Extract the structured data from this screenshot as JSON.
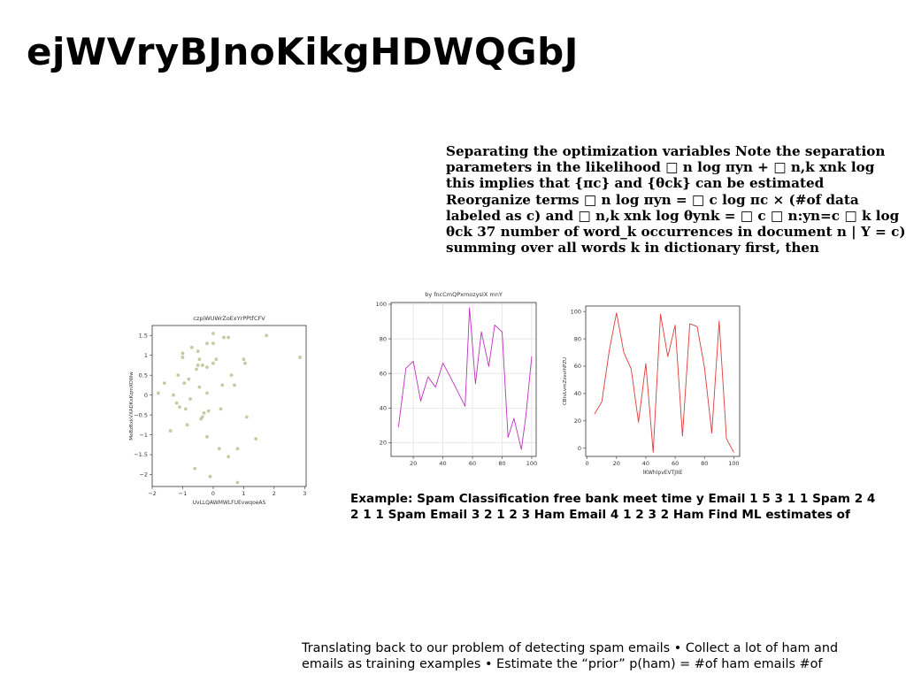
{
  "slide": {
    "title": "ejWVryBJnoKikgHDWQGbJ",
    "paragraph_1": "Separating the optimization variables Note the separation parameters in the likelihood □ n log πyn + □ n,k xnk log this implies that {πc} and {θck} can be estimated Reorganize terms □ n log πyn = □ c log πc × (#of data labeled as c) and □ n,k xnk log θynk = □ c □ n:yn=c □ k log θck 37 number of word_k occurrences in document n | Y = c) summing over all words k in dictionary first, then",
    "paragraph_2": "Example: Spam Classification free bank meet time y Email 1 5 3 1 1 Spam 2 4 2 1 1 Spam Email 3 2 1 2 3 Ham Email 4 1 2 3 2 Ham Find ML estimates of",
    "paragraph_3": "Translating back to our problem of detecting spam emails • Collect a lot of ham and emails as training examples • Estimate the “prior” p(ham) = #of ham emails #of"
  },
  "chart_data": [
    {
      "type": "scatter",
      "title": "czpiWUWrZoExYrPPtfCFV",
      "xlabel": "UvLLQAWMWLFUEvwqoeAS",
      "ylabel": "MeBzBxkVXADKxKqmXOWw",
      "xlim": [
        -2,
        3.05
      ],
      "ylim": [
        -2.3,
        1.75
      ],
      "xticks": [
        -2,
        -1,
        0,
        1,
        2,
        3
      ],
      "yticks": [
        -2.0,
        -1.5,
        -1.0,
        -0.5,
        0.0,
        0.5,
        1.0,
        1.5
      ],
      "color": "#c8c9a3",
      "points": [
        [
          -1.8,
          0.05
        ],
        [
          -1.6,
          0.3
        ],
        [
          -1.4,
          -0.9
        ],
        [
          -1.3,
          0.0
        ],
        [
          -1.2,
          -0.2
        ],
        [
          -1.15,
          0.5
        ],
        [
          -1.1,
          -0.3
        ],
        [
          -1.0,
          1.05
        ],
        [
          -1.0,
          0.95
        ],
        [
          -0.95,
          0.3
        ],
        [
          -0.9,
          -0.35
        ],
        [
          -0.85,
          -0.75
        ],
        [
          -0.8,
          0.4
        ],
        [
          -0.75,
          -0.1
        ],
        [
          -0.7,
          1.2
        ],
        [
          -0.6,
          -1.85
        ],
        [
          -0.55,
          0.65
        ],
        [
          -0.5,
          0.75
        ],
        [
          -0.5,
          1.1
        ],
        [
          -0.45,
          0.2
        ],
        [
          -0.45,
          0.9
        ],
        [
          -0.4,
          -0.6
        ],
        [
          -0.35,
          -0.55
        ],
        [
          -0.35,
          0.75
        ],
        [
          -0.3,
          -0.45
        ],
        [
          -0.2,
          0.7
        ],
        [
          -0.2,
          -1.05
        ],
        [
          -0.2,
          0.05
        ],
        [
          -0.2,
          1.3
        ],
        [
          -0.15,
          -0.4
        ],
        [
          -0.1,
          -2.05
        ],
        [
          0.0,
          0.8
        ],
        [
          0.0,
          1.55
        ],
        [
          0.0,
          1.3
        ],
        [
          0.1,
          0.9
        ],
        [
          0.2,
          -1.35
        ],
        [
          0.25,
          -0.35
        ],
        [
          0.3,
          0.25
        ],
        [
          0.35,
          1.45
        ],
        [
          0.5,
          1.45
        ],
        [
          0.5,
          -1.55
        ],
        [
          0.6,
          0.5
        ],
        [
          0.7,
          0.25
        ],
        [
          0.8,
          -1.35
        ],
        [
          0.8,
          -2.2
        ],
        [
          1.0,
          0.9
        ],
        [
          1.05,
          0.8
        ],
        [
          1.1,
          -0.55
        ],
        [
          1.4,
          -1.1
        ],
        [
          1.75,
          1.5
        ],
        [
          2.85,
          0.95
        ]
      ]
    },
    {
      "type": "line",
      "title": "by fncCmQPxmozysIX mnY",
      "xlabel": "",
      "ylabel": "",
      "xlim": [
        5,
        103
      ],
      "ylim": [
        12,
        101
      ],
      "xticks": [
        20,
        40,
        60,
        80,
        100
      ],
      "yticks": [
        20,
        40,
        60,
        80,
        100
      ],
      "grid": true,
      "color": "#bf30bf",
      "x": [
        10,
        15,
        20,
        25,
        30,
        35,
        40,
        45,
        55,
        58,
        62,
        66,
        71,
        75,
        80,
        84,
        88,
        93,
        96,
        100
      ],
      "y": [
        29,
        63,
        67,
        44,
        58,
        52,
        66,
        58,
        41,
        98,
        54,
        84,
        64,
        88,
        84,
        23,
        34,
        16,
        35,
        70
      ]
    },
    {
      "type": "line",
      "title": "",
      "xlabel": "lKWhlpvEVTJIIE",
      "ylabel": "CBtvLvmZzevihPZU",
      "xlim": [
        -1,
        104
      ],
      "ylim": [
        -6,
        104
      ],
      "xticks": [
        0,
        20,
        40,
        60,
        80,
        100
      ],
      "yticks": [
        0,
        20,
        40,
        60,
        80,
        100
      ],
      "grid": false,
      "color": "#e03a3a",
      "x": [
        5,
        10,
        15,
        20,
        25,
        30,
        35,
        40,
        45,
        50,
        55,
        60,
        65,
        70,
        75,
        80,
        85,
        90,
        95,
        100
      ],
      "y": [
        25,
        34,
        71,
        99,
        70,
        58,
        19,
        62,
        -3,
        98,
        67,
        90,
        9,
        91,
        89,
        59,
        11,
        93,
        7,
        -3
      ]
    }
  ]
}
